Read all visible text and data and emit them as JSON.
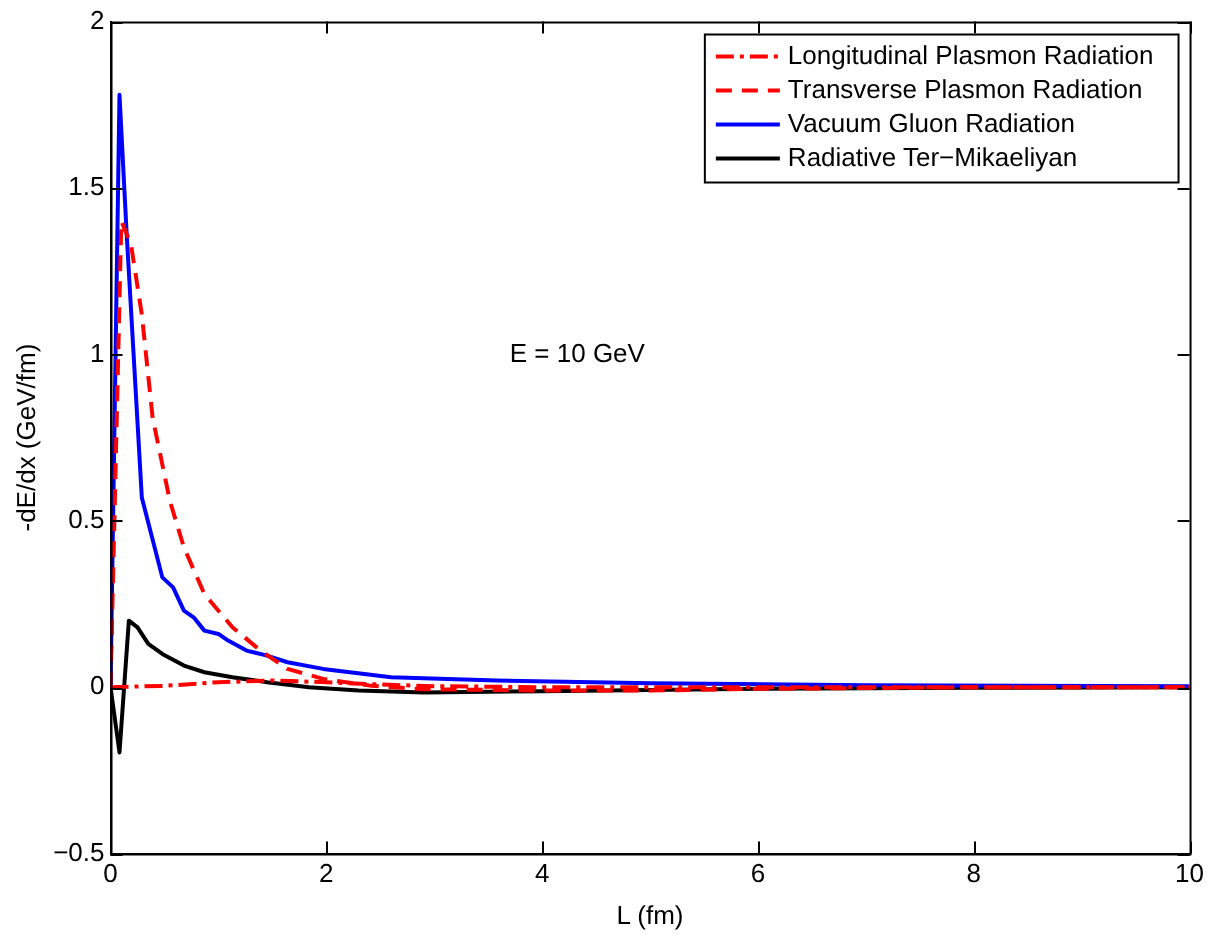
{
  "chart_data": {
    "type": "line",
    "xlabel": "L (fm)",
    "ylabel": "-dE/dx (GeV/fm)",
    "xlim": [
      0,
      10
    ],
    "ylim": [
      -0.5,
      2
    ],
    "xticks": [
      0,
      2,
      4,
      6,
      8,
      10
    ],
    "yticks": [
      {
        "value": -0.5,
        "label": "−0.5"
      },
      0,
      0.5,
      1,
      1.5,
      2
    ],
    "grid": false,
    "legend": "top right",
    "marker": "none",
    "annotations": [
      "E = 10 GeV"
    ],
    "series": [
      {
        "name": "Longitudinal Plasmon Radiation",
        "color": "#ff0000",
        "line_style": "dashdot",
        "x": [
          0,
          0.5,
          1,
          1.5,
          2,
          2.5,
          3,
          4,
          6,
          10
        ],
        "values": [
          0,
          0.004,
          0.015,
          0.02,
          0.015,
          0.008,
          0.003,
          0,
          0,
          0
        ]
      },
      {
        "name": "Transverse Plasmon Radiation",
        "color": "#ff0000",
        "line_style": "dashed",
        "x": [
          0,
          0.1,
          0.19,
          0.29,
          0.39,
          0.55,
          0.68,
          0.87,
          1.13,
          1.39,
          1.64,
          1.97,
          2.42,
          2.9,
          4,
          5,
          6,
          8,
          10
        ],
        "values": [
          0,
          1.4,
          1.33,
          1.12,
          0.81,
          0.56,
          0.42,
          0.28,
          0.18,
          0.11,
          0.055,
          0.025,
          0.004,
          -0.006,
          -0.01,
          -0.01,
          -0.005,
          0,
          0
        ]
      },
      {
        "name": "Vacuum Gluon Radiation",
        "color": "#0000ff",
        "line_style": "solid",
        "x": [
          0,
          0.083,
          0.15,
          0.29,
          0.48,
          0.58,
          0.68,
          0.77,
          0.87,
          1,
          1.09,
          1.26,
          1.45,
          1.64,
          1.97,
          2.6,
          3.58,
          5,
          7,
          10
        ],
        "values": [
          0,
          1.78,
          1.36,
          0.57,
          0.33,
          0.3,
          0.23,
          0.21,
          0.17,
          0.16,
          0.14,
          0.11,
          0.095,
          0.075,
          0.055,
          0.03,
          0.02,
          0.012,
          0.006,
          0.003
        ]
      },
      {
        "name": "Radiative Ter−Mikaeliyan",
        "color": "#000000",
        "line_style": "solid",
        "x": [
          0,
          0.083,
          0.17,
          0.25,
          0.35,
          0.48,
          0.68,
          0.87,
          1.13,
          1.45,
          1.84,
          2.3,
          2.9,
          4,
          6,
          8,
          10
        ],
        "values": [
          0,
          -0.196,
          0.2,
          0.18,
          0.13,
          0.1,
          0.065,
          0.045,
          0.03,
          0.015,
          0,
          -0.01,
          -0.016,
          -0.012,
          -0.005,
          -0.002,
          0
        ]
      }
    ]
  }
}
